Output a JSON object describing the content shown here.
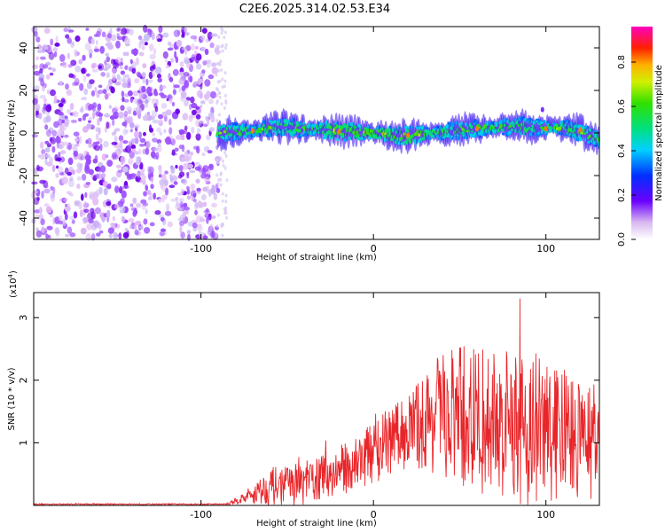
{
  "title": "C2E6.2025.314.02.53.E34",
  "spectrogram": {
    "xlabel": "Height of straight line (km)",
    "ylabel": "Frequency (Hz)",
    "xlim": [
      -197,
      131
    ],
    "ylim": [
      -50,
      50
    ],
    "xticks": [
      -100,
      0,
      100
    ],
    "yticks": [
      -40,
      -20,
      0,
      20,
      40
    ],
    "colorbar": {
      "label": "Normalized spectral amplitude",
      "range": [
        0,
        0.96
      ],
      "ticks": [
        "0.0",
        "0.2",
        "0.4",
        "0.6",
        "0.8"
      ],
      "tick_values": [
        0,
        0.2,
        0.4,
        0.6,
        0.8
      ]
    },
    "noise_region_x": [
      -197,
      -88
    ],
    "signal_band": [
      {
        "x": -90,
        "f": 0.0
      },
      {
        "x": -70,
        "f": 1.0
      },
      {
        "x": -55,
        "f": 3.0
      },
      {
        "x": -40,
        "f": 2.0
      },
      {
        "x": -20,
        "f": 1.0
      },
      {
        "x": 0,
        "f": 0.0
      },
      {
        "x": 20,
        "f": -1.5
      },
      {
        "x": 40,
        "f": 0.5
      },
      {
        "x": 60,
        "f": 2.0
      },
      {
        "x": 80,
        "f": 3.0
      },
      {
        "x": 100,
        "f": 2.5
      },
      {
        "x": 115,
        "f": 2.0
      },
      {
        "x": 131,
        "f": -3.0
      }
    ]
  },
  "chart_data": {
    "type": "line",
    "title": "C2E6.2025.314.02.53.E34",
    "xlabel": "Height of straight line (km)",
    "ylabel": "SNR (10 * v/v)",
    "y_scale_label": "(x10",
    "y_scale_exp": "4",
    "y_scale_close": ")",
    "xlim": [
      -197,
      131
    ],
    "ylim": [
      0,
      3.4
    ],
    "xticks": [
      -100,
      0,
      100
    ],
    "yticks": [
      1,
      2,
      3
    ],
    "color": "#e8262a",
    "envelope": [
      {
        "x": -197,
        "mean": 0.02,
        "amp": 0.01
      },
      {
        "x": -85,
        "mean": 0.02,
        "amp": 0.01
      },
      {
        "x": -75,
        "mean": 0.12,
        "amp": 0.1
      },
      {
        "x": -60,
        "mean": 0.3,
        "amp": 0.3
      },
      {
        "x": -40,
        "mean": 0.35,
        "amp": 0.35
      },
      {
        "x": -20,
        "mean": 0.55,
        "amp": 0.4
      },
      {
        "x": 0,
        "mean": 0.85,
        "amp": 0.5
      },
      {
        "x": 20,
        "mean": 1.2,
        "amp": 0.6
      },
      {
        "x": 35,
        "mean": 1.4,
        "amp": 0.9
      },
      {
        "x": 50,
        "mean": 1.4,
        "amp": 1.2
      },
      {
        "x": 70,
        "mean": 1.3,
        "amp": 1.2
      },
      {
        "x": 95,
        "mean": 1.2,
        "amp": 1.3
      },
      {
        "x": 115,
        "mean": 1.1,
        "amp": 1.0
      },
      {
        "x": 131,
        "mean": 1.0,
        "amp": 0.9
      }
    ]
  }
}
